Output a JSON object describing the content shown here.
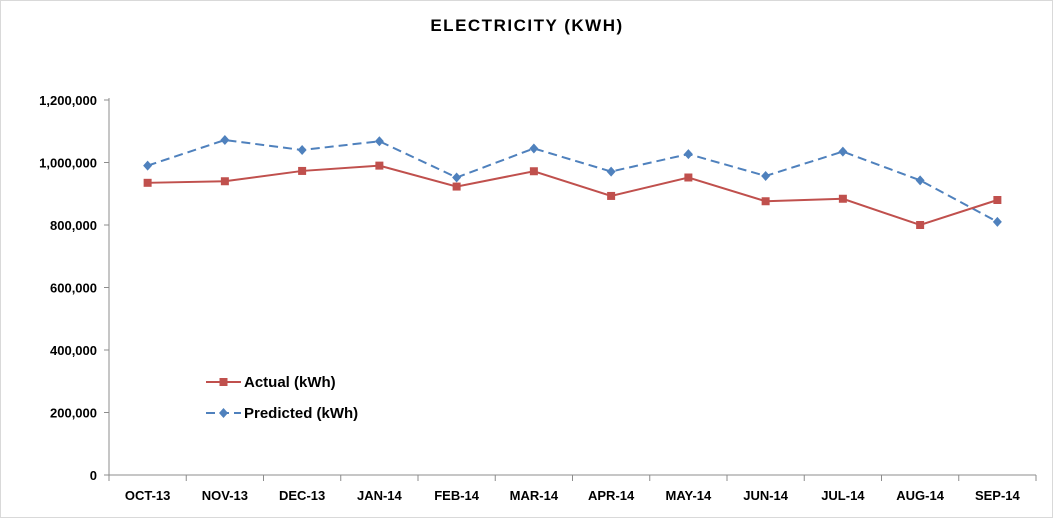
{
  "chart_data": {
    "type": "line",
    "title": "ELECTRICITY (KWH)",
    "xlabel": "",
    "ylabel": "",
    "categories": [
      "OCT-13",
      "NOV-13",
      "DEC-13",
      "JAN-14",
      "FEB-14",
      "MAR-14",
      "APR-14",
      "MAY-14",
      "JUN-14",
      "JUL-14",
      "AUG-14",
      "SEP-14"
    ],
    "ylim": [
      0,
      1200000
    ],
    "yticks": [
      0,
      200000,
      400000,
      600000,
      800000,
      1000000,
      1200000
    ],
    "ytick_labels": [
      "0",
      "200,000",
      "400,000",
      "600,000",
      "800,000",
      "1,000,000",
      "1,200,000"
    ],
    "grid": false,
    "legend_position": "lower-left",
    "series": [
      {
        "name": "Actual (kWh)",
        "color": "#c0504d",
        "marker": "square",
        "line_style": "solid",
        "values": [
          935000,
          940000,
          973000,
          990000,
          923000,
          972000,
          893000,
          952000,
          876000,
          884000,
          800000,
          880000
        ]
      },
      {
        "name": "Predicted (kWh)",
        "color": "#4f81bd",
        "marker": "diamond",
        "line_style": "dashed",
        "values": [
          990000,
          1072000,
          1040000,
          1068000,
          952000,
          1045000,
          971000,
          1027000,
          957000,
          1035000,
          943000,
          810000
        ]
      }
    ]
  }
}
